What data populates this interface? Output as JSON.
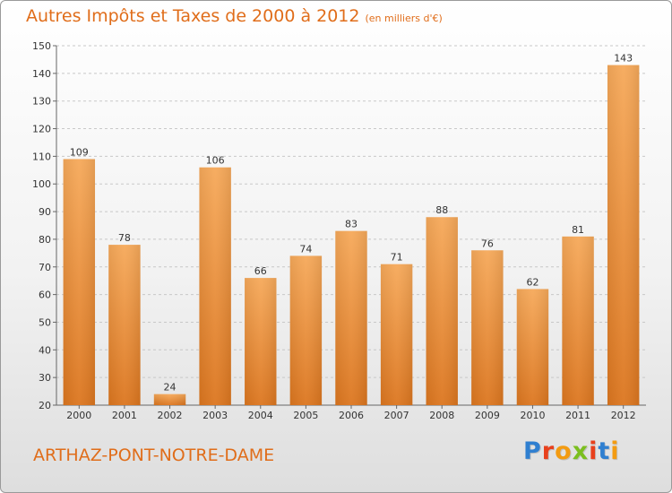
{
  "header": {
    "title": "Autres Impôts et Taxes de 2000 à 2012",
    "unit": "(en milliers d'€)"
  },
  "footer": {
    "commune": "ARTHAZ-PONT-NOTRE-DAME",
    "logo_text": "Proxiti",
    "logo_colors": [
      "#2f7fd0",
      "#e8401c",
      "#f39b11",
      "#7bbf1f",
      "#e8401c",
      "#2f7fd0",
      "#f39b11"
    ]
  },
  "colors": {
    "accent": "#e06d1a",
    "bar_top": "#f6a95a",
    "bar_bottom": "#dc761f",
    "grid": "#c8c8c8",
    "axis_text": "#333333"
  },
  "chart_data": {
    "type": "bar",
    "title": "Autres Impôts et Taxes de 2000 à 2012",
    "subtitle": "(en milliers d'€)",
    "categories": [
      "2000",
      "2001",
      "2002",
      "2003",
      "2004",
      "2005",
      "2006",
      "2007",
      "2008",
      "2009",
      "2010",
      "2011",
      "2012"
    ],
    "values": [
      109,
      78,
      24,
      106,
      66,
      74,
      83,
      71,
      88,
      76,
      62,
      81,
      143
    ],
    "ylim": [
      20,
      150
    ],
    "yticks": [
      20,
      30,
      40,
      50,
      60,
      70,
      80,
      90,
      100,
      110,
      120,
      130,
      140,
      150
    ],
    "grid": "horizontal dashed",
    "legend": "none"
  }
}
